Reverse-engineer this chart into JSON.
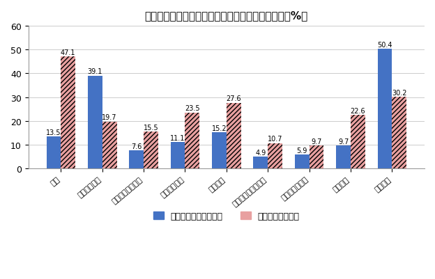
{
  "title": "経済制度・政策の先行き不透明感・経営への影響（%）",
  "categories": [
    "税制",
    "社会保障制度",
    "事業の許認可制度",
    "労働市場制度",
    "環境規制",
    "土地利用・建築規制",
    "消費者保護制度",
    "会社法制",
    "通商政策"
  ],
  "blue_values": [
    13.5,
    39.1,
    7.6,
    11.1,
    15.2,
    4.9,
    5.9,
    9.7,
    50.4
  ],
  "pink_values": [
    47.1,
    19.7,
    15.5,
    23.5,
    27.6,
    10.7,
    9.7,
    22.6,
    30.2
  ],
  "blue_color": "#4472C4",
  "pink_color": "#E8A0A0",
  "blue_label": "非常に不透明感がある",
  "pink_label": "非常に影響がある",
  "ylim": [
    0,
    60
  ],
  "yticks": [
    0,
    10,
    20,
    30,
    40,
    50,
    60
  ],
  "background_color": "#ffffff",
  "grid_color": "#cccccc",
  "title_fontsize": 11,
  "label_fontsize": 8,
  "tick_fontsize": 9,
  "bar_width": 0.35,
  "value_fontsize": 7
}
